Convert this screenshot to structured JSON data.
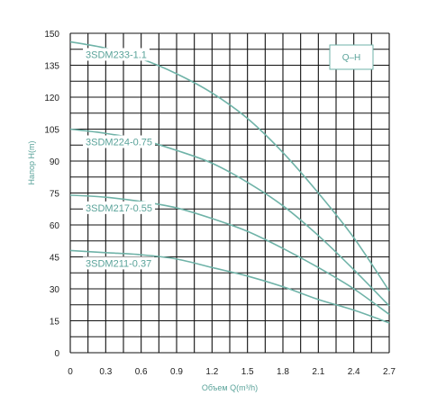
{
  "chart_data": {
    "type": "line",
    "xlabel": "Объем Q(m³/h)",
    "ylabel": "Напор H(m)",
    "xlim": [
      0,
      2.7
    ],
    "ylim": [
      0,
      150
    ],
    "x_ticks": [
      "0",
      "0.3",
      "0.6",
      "0.9",
      "1.2",
      "1.5",
      "1.8",
      "2.1",
      "2.4",
      "2.7"
    ],
    "y_ticks": [
      "0",
      "15",
      "30",
      "45",
      "60",
      "75",
      "90",
      "105",
      "120",
      "135",
      "150"
    ],
    "grid": true,
    "legend": "Q–H",
    "line_color": "#6fb3a8",
    "series": [
      {
        "name": "3SDM233-1.1",
        "x": [
          0,
          0.3,
          0.6,
          0.9,
          1.2,
          1.5,
          1.8,
          2.1,
          2.4,
          2.7
        ],
        "values": [
          146,
          143,
          138,
          131,
          122,
          110,
          94,
          75,
          54,
          29
        ]
      },
      {
        "name": "3SDM224-0.75",
        "x": [
          0,
          0.3,
          0.6,
          0.9,
          1.2,
          1.5,
          1.8,
          2.1,
          2.4,
          2.7
        ],
        "values": [
          105,
          103,
          100,
          95,
          89,
          80,
          69,
          55,
          39,
          22
        ]
      },
      {
        "name": "3SDM217-0.55",
        "x": [
          0,
          0.3,
          0.6,
          0.9,
          1.2,
          1.5,
          1.8,
          2.1,
          2.4,
          2.7
        ],
        "values": [
          74,
          73,
          71,
          68,
          63,
          57,
          49,
          40,
          30,
          18
        ]
      },
      {
        "name": "3SDM211-0.37",
        "x": [
          0,
          0.3,
          0.6,
          0.9,
          1.2,
          1.5,
          1.8,
          2.1,
          2.4,
          2.7
        ],
        "values": [
          48,
          47,
          46,
          44,
          40,
          36,
          31,
          25,
          20,
          14
        ]
      }
    ]
  }
}
